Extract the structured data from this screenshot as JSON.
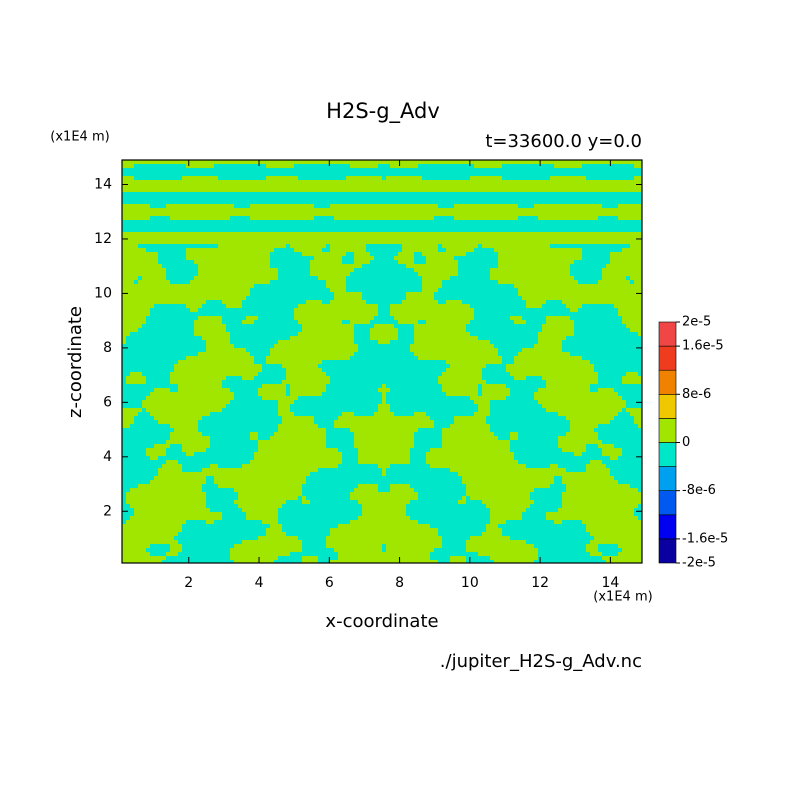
{
  "chart_data": {
    "type": "contour",
    "title": "H2S-g_Adv",
    "subtitle": "t=33600.0 y=0.0",
    "x_label": "x-coordinate",
    "y_label": "z-coordinate",
    "x_unit": "(x1E4 m)",
    "y_unit": "(x1E4 m)",
    "file_label": "./jupiter_H2S-g_Adv.nc",
    "xlim": [
      0.1,
      14.9
    ],
    "ylim": [
      0.1,
      14.9
    ],
    "xticks": [
      2,
      4,
      6,
      8,
      10,
      12,
      14
    ],
    "yticks": [
      2,
      4,
      6,
      8,
      10,
      12,
      14
    ],
    "clim": [
      -2e-05,
      2e-05
    ],
    "colorbar_colors": [
      "#0a00a0",
      "#0000f0",
      "#005af0",
      "#00a0f0",
      "#00e6c8",
      "#a0e600",
      "#f0c800",
      "#f08200",
      "#f03c1e",
      "#f04646"
    ],
    "colorbar_ticks": [
      {
        "value": 2e-05,
        "label": "2e-5"
      },
      {
        "value": 1.6e-05,
        "label": "1.6e-5"
      },
      {
        "value": 8e-06,
        "label": "8e-6"
      },
      {
        "value": 0,
        "label": "0"
      },
      {
        "value": -8e-06,
        "label": "-8e-6"
      },
      {
        "value": -1.6e-05,
        "label": "-1.6e-5"
      },
      {
        "value": -2e-05,
        "label": "-2e-5"
      }
    ]
  }
}
